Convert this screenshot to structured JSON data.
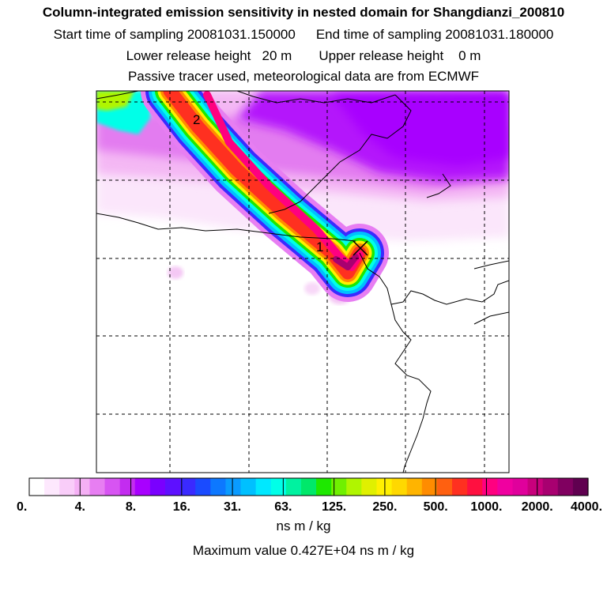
{
  "header": {
    "title": "Column-integrated emission sensitivity in nested domain for Shangdianzi_200810",
    "start_label": "Start time of sampling 20081031.150000",
    "end_label": "End time of sampling 20081031.180000",
    "lower_label": "Lower release height   20 m",
    "upper_label": "Upper release height    0 m",
    "note": "Passive tracer used, meteorological data are from ECMWF"
  },
  "map": {
    "markers": [
      {
        "label": "1"
      },
      {
        "label": "2"
      }
    ],
    "release_symbol": "cross-x-marker-icon",
    "grid": "dashed"
  },
  "colorbar": {
    "tick_labels": [
      "0.",
      "4.",
      "8.",
      "16.",
      "31.",
      "63.",
      "125.",
      "250.",
      "500.",
      "1000.",
      "2000.",
      "4000."
    ],
    "colors": [
      "#ffffff",
      "#fde8fd",
      "#f9cdf9",
      "#f5b0f5",
      "#e77ef2",
      "#d754f2",
      "#c32cf0",
      "#a800ff",
      "#7a00ff",
      "#5e10ff",
      "#3a2aff",
      "#1a4bff",
      "#0d78ff",
      "#0a9bff",
      "#00c0ff",
      "#00e8ff",
      "#00ffe8",
      "#00f2a0",
      "#00e86a",
      "#1ee800",
      "#70f000",
      "#b0f500",
      "#e0f000",
      "#fff000",
      "#ffd800",
      "#ffb400",
      "#ff8c00",
      "#ff6010",
      "#ff3020",
      "#ff1040",
      "#ff0080",
      "#f000a0",
      "#e0009c",
      "#c8007c",
      "#a80070",
      "#800060",
      "#600050"
    ]
  },
  "footer": {
    "units": "ns m / kg",
    "max_value": "Maximum value  0.427E+04 ns m / kg"
  }
}
